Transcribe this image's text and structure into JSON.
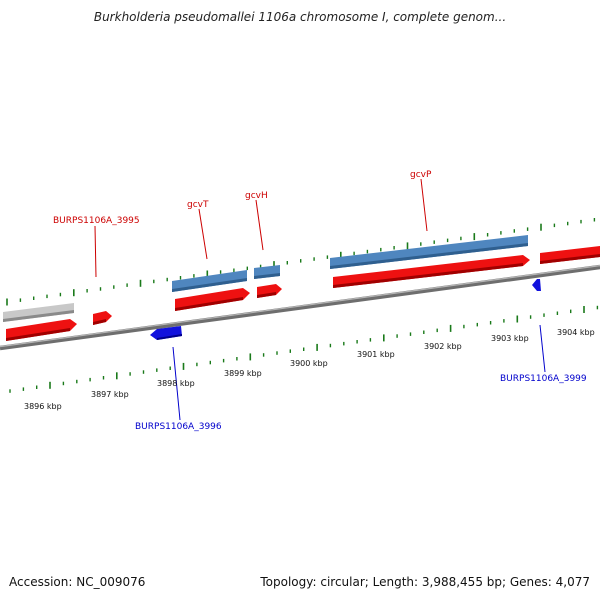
{
  "title": "Burkholderia pseudomallei 1106a chromosome I, complete genom...",
  "footer": {
    "accession": "Accession: NC_009076",
    "summary": "Topology: circular; Length: 3,988,455 bp; Genes: 4,077"
  },
  "colors": {
    "forward_gene": "#ee1111",
    "reverse_gene": "#1111dd",
    "cds_bar": "#4a7fb5",
    "pseudo_bar": "#bbbbbb",
    "ticks": "#1a7a1a",
    "backbone": "#888888",
    "label_forward": "#cc0000",
    "label_reverse": "#0000cc"
  },
  "scale": {
    "labels": [
      "3896 kbp",
      "3897 kbp",
      "3898 kbp",
      "3899 kbp",
      "3900 kbp",
      "3901 kbp",
      "3902 kbp",
      "3903 kbp",
      "3904 kbp"
    ]
  },
  "gene_labels": {
    "burps_3995": "BURPS1106A_3995",
    "gcvT": "gcvT",
    "gcvH": "gcvH",
    "gcvP": "gcvP",
    "burps_3996": "BURPS1106A_3996",
    "burps_3999": "BURPS1106A_3999"
  }
}
